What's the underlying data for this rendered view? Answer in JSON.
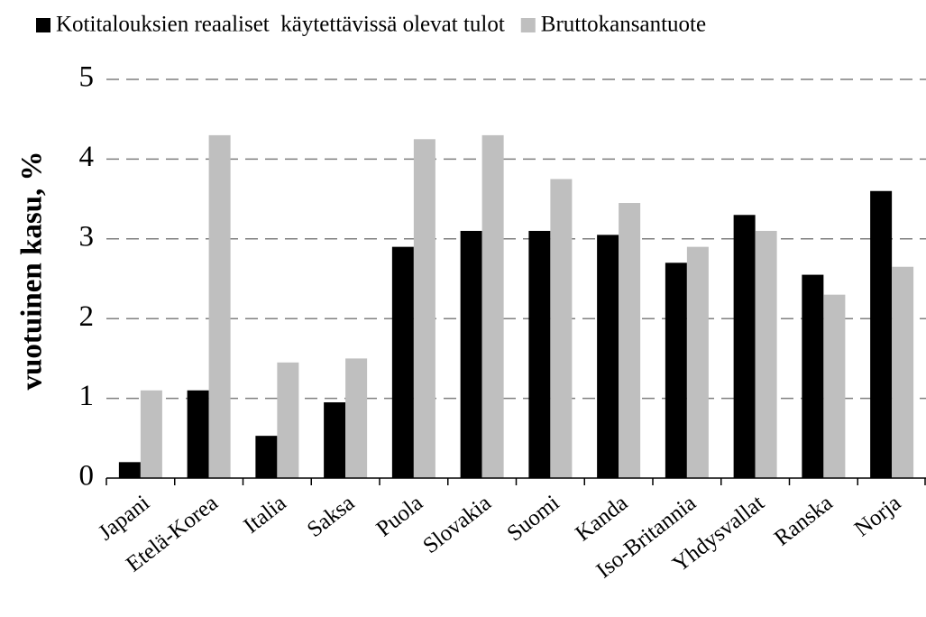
{
  "chart_data": {
    "type": "bar",
    "y_label": "vuotuinen kasu, %",
    "categories": [
      "Japani",
      "Etelä-Korea",
      "Italia",
      "Saksa",
      "Puola",
      "Slovakia",
      "Suomi",
      "Kanda",
      "Iso-Britannia",
      "Yhdysvallat",
      "Ranska",
      "Norja"
    ],
    "series": [
      {
        "name": "Kotitalouksien reaaliset  käytettävissä olevat tulot",
        "color": "#000000",
        "values": [
          0.2,
          1.1,
          0.53,
          0.95,
          2.9,
          3.1,
          3.1,
          3.05,
          2.7,
          3.3,
          2.55,
          3.6
        ]
      },
      {
        "name": "Bruttokansantuote",
        "color": "#bfbfbf",
        "values": [
          1.1,
          4.3,
          1.45,
          1.5,
          4.25,
          4.3,
          3.75,
          3.45,
          2.9,
          3.1,
          2.3,
          2.65
        ]
      }
    ],
    "ylim": [
      0,
      5
    ],
    "yticks": [
      0,
      1,
      2,
      3,
      4,
      5
    ],
    "grid": true
  }
}
